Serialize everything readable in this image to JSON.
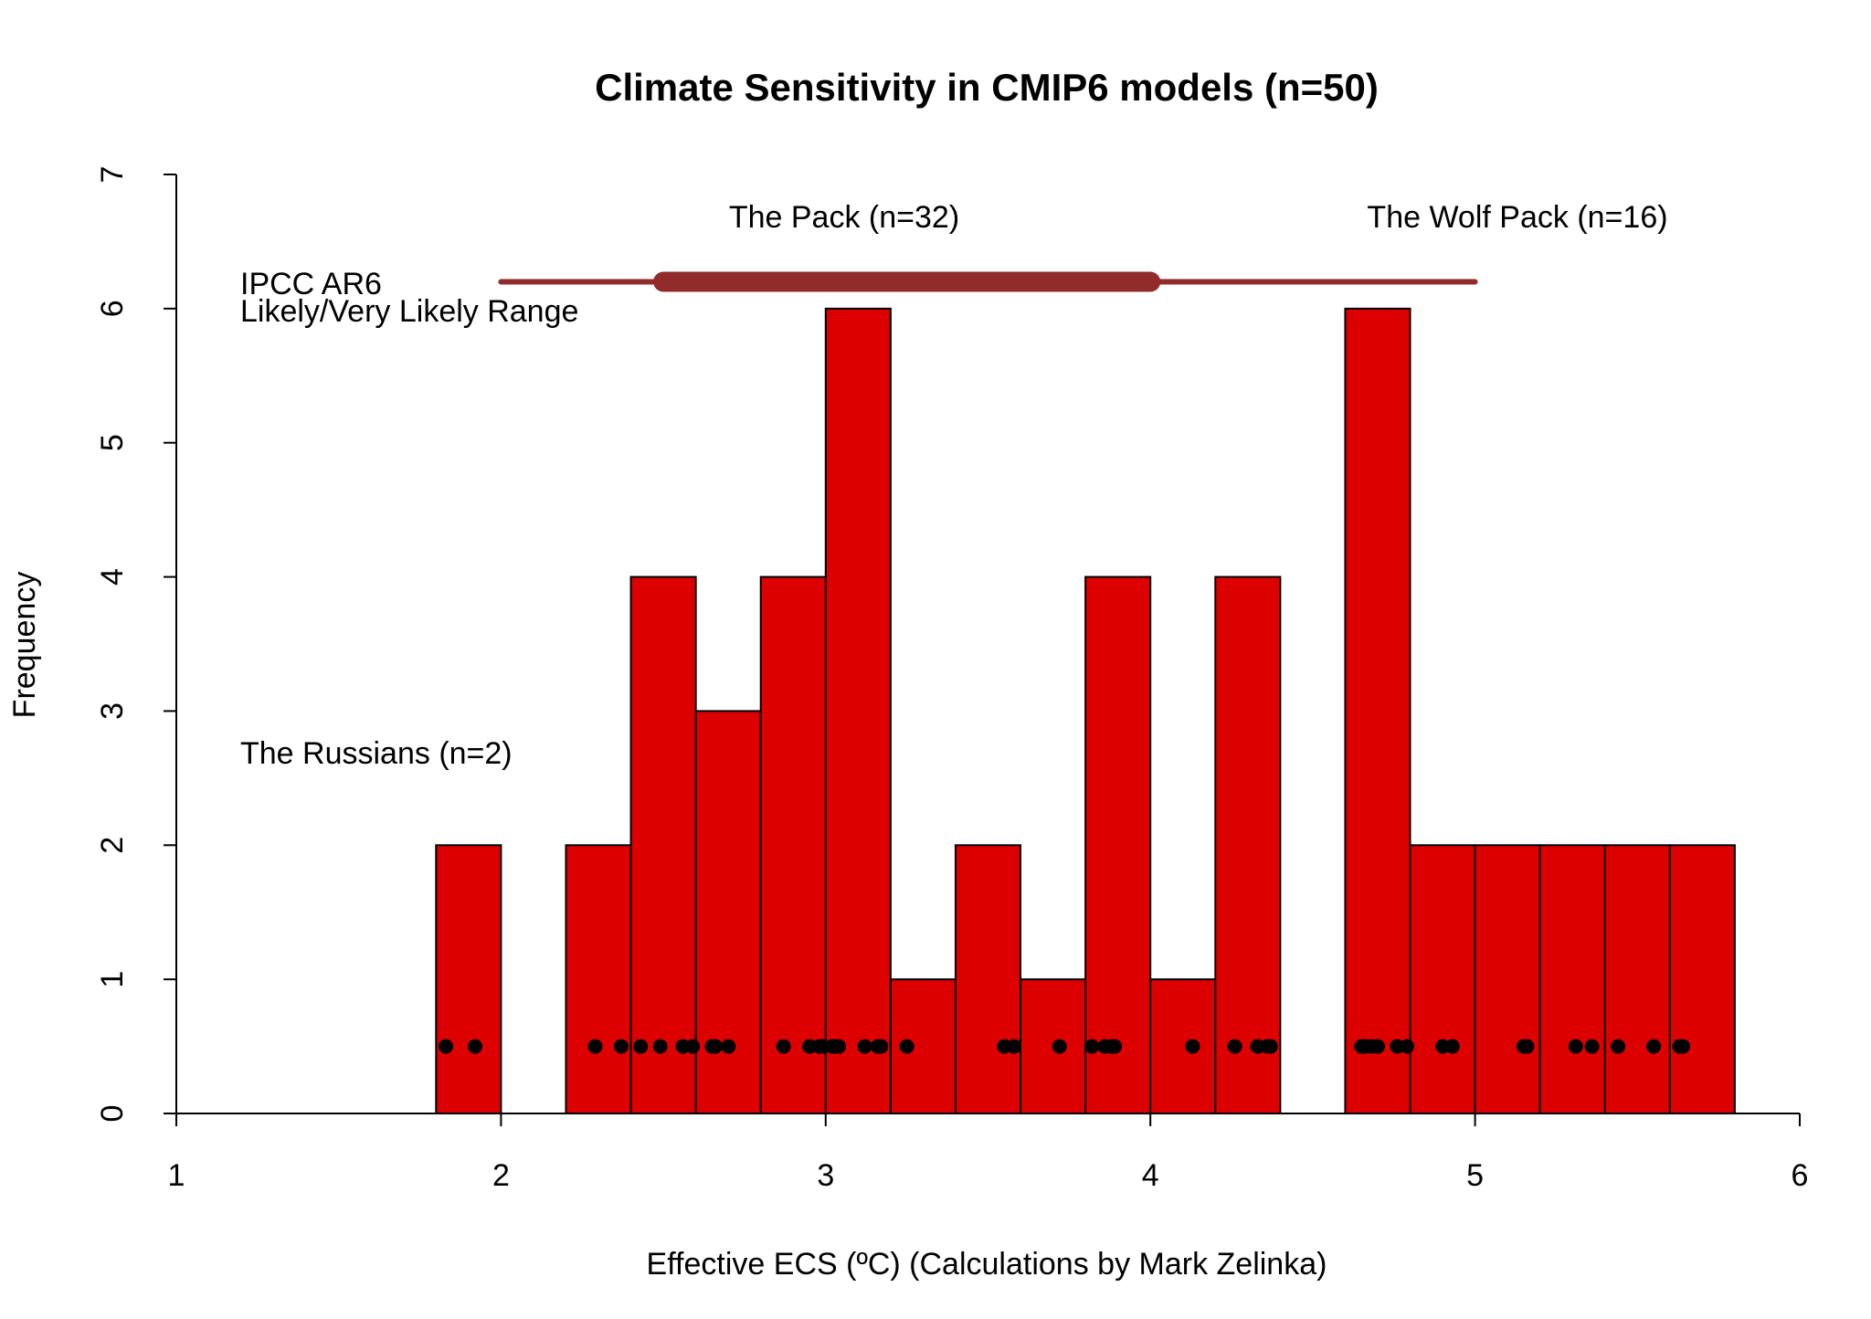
{
  "chart_data": {
    "type": "histogram",
    "title": "Climate Sensitivity in CMIP6 models (n=50)",
    "x_label": "Effective ECS (ºC) (Calculations by Mark Zelinka)",
    "y_label": "Frequency",
    "bins": [
      1.8,
      2.0,
      2.2,
      2.4,
      2.6,
      2.8,
      3.0,
      3.2,
      3.4,
      3.6,
      3.8,
      4.0,
      4.2,
      4.4,
      4.6,
      4.8,
      5.0,
      5.2,
      5.4,
      5.6,
      5.8
    ],
    "values": [
      2,
      0,
      2,
      4,
      3,
      4,
      6,
      1,
      2,
      1,
      4,
      1,
      4,
      0,
      6,
      2,
      2,
      2,
      2,
      2
    ],
    "color": "#dd0000",
    "dots": {
      "x": [
        1.83,
        1.92,
        2.29,
        2.37,
        2.43,
        2.49,
        2.56,
        2.59,
        2.65,
        2.66,
        2.7,
        2.87,
        2.95,
        2.98,
        2.99,
        3.02,
        3.03,
        3.04,
        3.12,
        3.16,
        3.17,
        3.25,
        3.55,
        3.58,
        3.72,
        3.82,
        3.86,
        3.88,
        3.89,
        4.13,
        4.26,
        4.33,
        4.36,
        4.37,
        4.65,
        4.66,
        4.68,
        4.7,
        4.76,
        4.79,
        4.9,
        4.93,
        5.15,
        5.16,
        5.31,
        5.36,
        5.44,
        5.55,
        5.63,
        5.64
      ],
      "y": 0.5,
      "color": "#000000"
    },
    "range": {
      "label": [
        "IPCC AR6",
        "Likely/Very Likely Range"
      ],
      "very_likely": [
        2,
        5
      ],
      "likely": [
        2.5,
        4
      ],
      "y": 6.2,
      "color": "#922b2b"
    },
    "annotations": [
      "The Pack (n=32)",
      "The Wolf Pack (n=16)",
      "The Russians (n=2)"
    ],
    "annotation_color": "#0000ff",
    "xlim": [
      1,
      6
    ],
    "xticks": [
      1,
      2,
      3,
      4,
      5,
      6
    ],
    "ylim": [
      0,
      7
    ],
    "yticks": [
      0,
      1,
      2,
      3,
      4,
      5,
      6,
      7
    ]
  }
}
